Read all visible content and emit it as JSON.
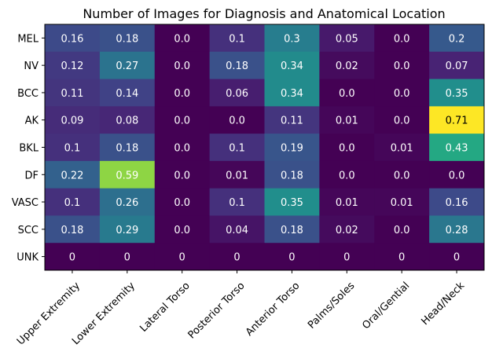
{
  "chart_data": {
    "type": "heatmap",
    "title": "Number of Images for Diagnosis and Anatomical Location",
    "xlabel": "",
    "ylabel": "",
    "x_categories": [
      "Upper Extremity",
      "Lower Extremity",
      "Lateral Torso",
      "Posterior Torso",
      "Anterior Torso",
      "Palms/Soles",
      "Oral/Gential",
      "Head/Neck"
    ],
    "y_categories": [
      "MEL",
      "NV",
      "BCC",
      "AK",
      "BKL",
      "DF",
      "VASC",
      "SCC",
      "UNK"
    ],
    "values": [
      [
        0.16,
        0.18,
        0.0,
        0.1,
        0.3,
        0.05,
        0.0,
        0.2
      ],
      [
        0.12,
        0.27,
        0.0,
        0.18,
        0.34,
        0.02,
        0.0,
        0.07
      ],
      [
        0.11,
        0.14,
        0.0,
        0.06,
        0.34,
        0.0,
        0.0,
        0.35
      ],
      [
        0.09,
        0.08,
        0.0,
        0.0,
        0.11,
        0.01,
        0.0,
        0.71
      ],
      [
        0.1,
        0.18,
        0.0,
        0.1,
        0.19,
        0.0,
        0.01,
        0.43
      ],
      [
        0.22,
        0.59,
        0.0,
        0.01,
        0.18,
        0.0,
        0.0,
        0.0
      ],
      [
        0.1,
        0.26,
        0.0,
        0.1,
        0.35,
        0.01,
        0.01,
        0.16
      ],
      [
        0.18,
        0.29,
        0.0,
        0.04,
        0.18,
        0.02,
        0.0,
        0.28
      ],
      [
        0,
        0,
        0,
        0,
        0,
        0,
        0,
        0
      ]
    ],
    "labels": [
      [
        "0.16",
        "0.18",
        "0.0",
        "0.1",
        "0.3",
        "0.05",
        "0.0",
        "0.2"
      ],
      [
        "0.12",
        "0.27",
        "0.0",
        "0.18",
        "0.34",
        "0.02",
        "0.0",
        "0.07"
      ],
      [
        "0.11",
        "0.14",
        "0.0",
        "0.06",
        "0.34",
        "0.0",
        "0.0",
        "0.35"
      ],
      [
        "0.09",
        "0.08",
        "0.0",
        "0.0",
        "0.11",
        "0.01",
        "0.0",
        "0.71"
      ],
      [
        "0.1",
        "0.18",
        "0.0",
        "0.1",
        "0.19",
        "0.0",
        "0.01",
        "0.43"
      ],
      [
        "0.22",
        "0.59",
        "0.0",
        "0.01",
        "0.18",
        "0.0",
        "0.0",
        "0.0"
      ],
      [
        "0.1",
        "0.26",
        "0.0",
        "0.1",
        "0.35",
        "0.01",
        "0.01",
        "0.16"
      ],
      [
        "0.18",
        "0.29",
        "0.0",
        "0.04",
        "0.18",
        "0.02",
        "0.0",
        "0.28"
      ],
      [
        "0",
        "0",
        "0",
        "0",
        "0",
        "0",
        "0",
        "0"
      ]
    ],
    "vmin": 0,
    "vmax": 0.71,
    "colormap": "viridis",
    "grid": false,
    "legend": "none"
  }
}
